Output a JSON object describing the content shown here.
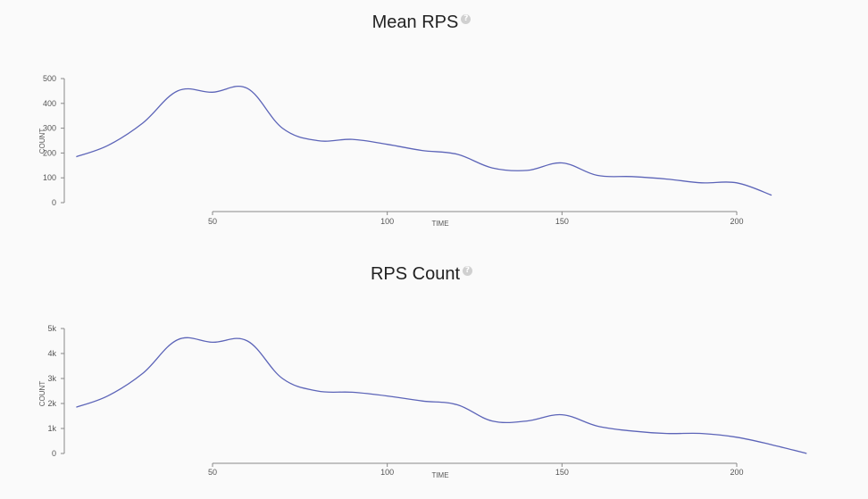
{
  "chart_data": [
    {
      "type": "line",
      "title": "Mean RPS",
      "xlabel": "TIME",
      "ylabel": "COUNT",
      "xlim": [
        8,
        220
      ],
      "ylim": [
        0,
        500
      ],
      "x_ticks": [
        50,
        100,
        150,
        200
      ],
      "y_ticks": [
        0,
        100,
        200,
        300,
        400,
        500
      ],
      "y_tick_labels": [
        "0",
        "100",
        "200",
        "300",
        "400",
        "500"
      ],
      "x_tick_labels": [
        "50",
        "100",
        "150",
        "200"
      ],
      "grid": false,
      "series": [
        {
          "color": "#5c64b8",
          "x": [
            11,
            20,
            30,
            40,
            50,
            60,
            70,
            80,
            90,
            100,
            110,
            120,
            130,
            140,
            150,
            160,
            170,
            180,
            190,
            200,
            210
          ],
          "y": [
            185,
            230,
            320,
            450,
            445,
            460,
            300,
            250,
            255,
            235,
            210,
            195,
            140,
            130,
            160,
            110,
            105,
            95,
            80,
            80,
            30
          ]
        }
      ]
    },
    {
      "type": "line",
      "title": "RPS Count",
      "xlabel": "TIME",
      "ylabel": "COUNT",
      "xlim": [
        8,
        220
      ],
      "ylim": [
        0,
        5000
      ],
      "x_ticks": [
        50,
        100,
        150,
        200
      ],
      "y_ticks": [
        0,
        1000,
        2000,
        3000,
        4000,
        5000
      ],
      "y_tick_labels": [
        "0",
        "1k",
        "2k",
        "3k",
        "4k",
        "5k"
      ],
      "x_tick_labels": [
        "50",
        "100",
        "150",
        "200"
      ],
      "grid": false,
      "series": [
        {
          "color": "#5c64b8",
          "x": [
            11,
            20,
            30,
            40,
            50,
            60,
            70,
            80,
            90,
            100,
            110,
            120,
            130,
            140,
            150,
            160,
            170,
            180,
            190,
            200,
            210,
            220
          ],
          "y": [
            1850,
            2300,
            3200,
            4550,
            4450,
            4500,
            3000,
            2500,
            2450,
            2300,
            2100,
            1950,
            1300,
            1300,
            1550,
            1100,
            900,
            800,
            800,
            650,
            350,
            0
          ]
        }
      ]
    }
  ]
}
